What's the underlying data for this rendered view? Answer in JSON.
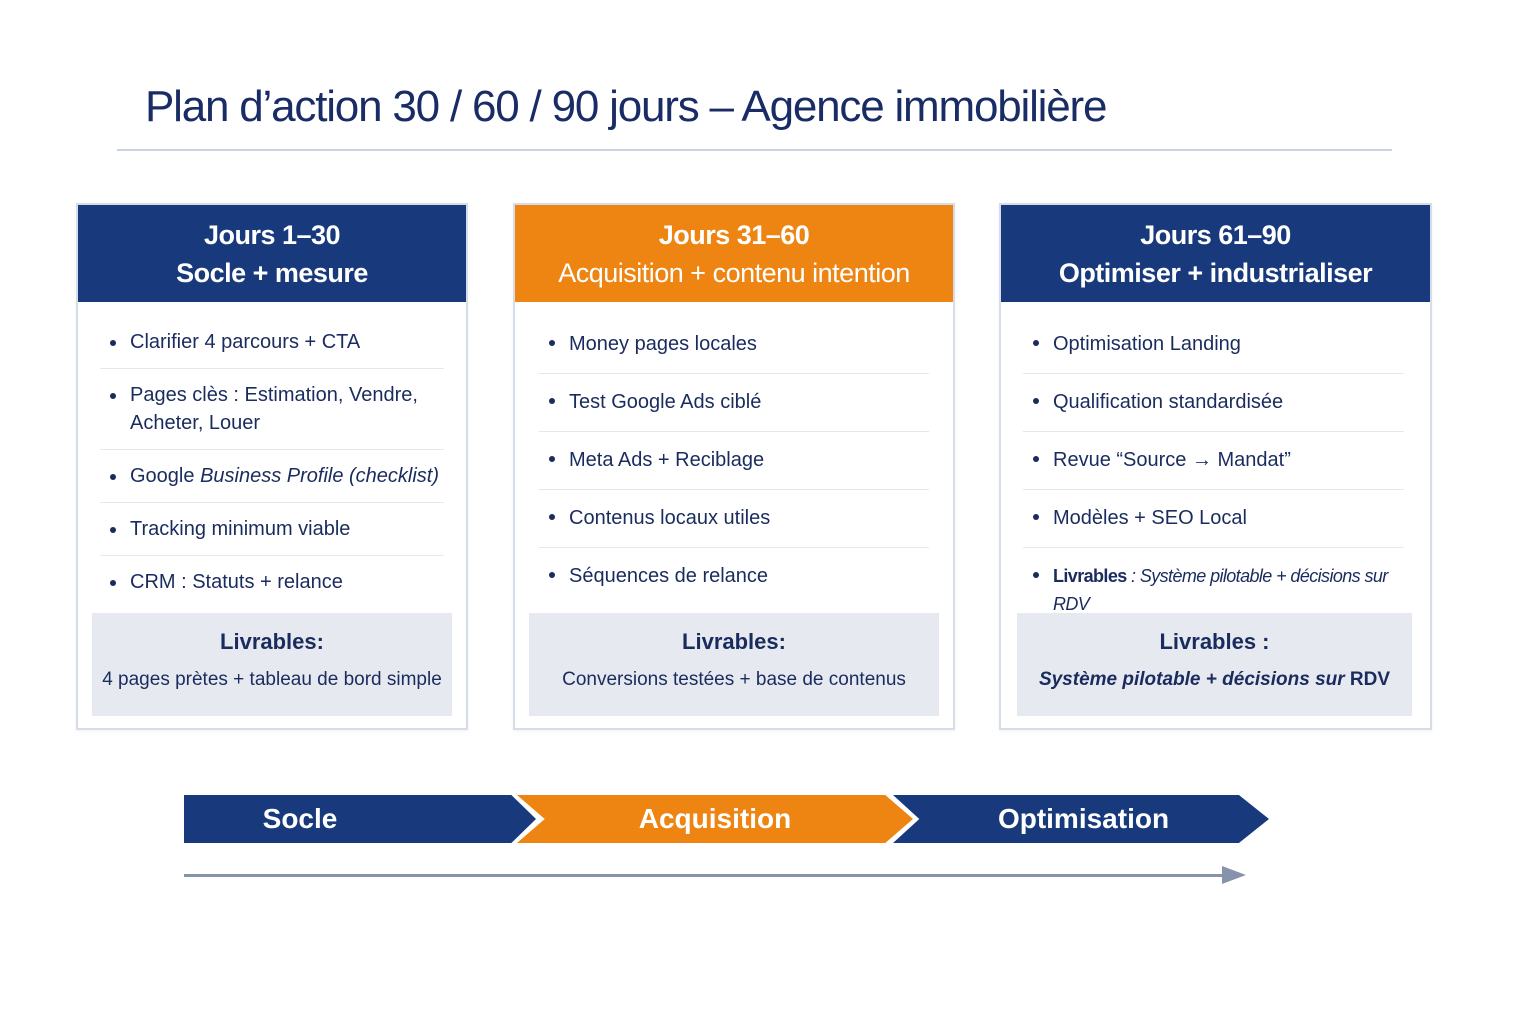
{
  "title": "Plan d’action 30 / 60 /  90 jours – Agence immobilière",
  "colors": {
    "navy": "#183a7c",
    "orange": "#ee8412",
    "deliverable_bg": "#e6e9f0"
  },
  "phases": [
    {
      "days": "Jours 1–30",
      "name": "Socle + mesure",
      "items": [
        {
          "text": "Clarifier 4 parcours + CTA"
        },
        {
          "text": "Pages clès : Estimation, Vendre, Acheter, Louer"
        },
        {
          "text": "Google ",
          "italic": "Business Profile (checklist)"
        },
        {
          "text": "Tracking minimum viable"
        },
        {
          "text": "CRM : Statuts + relance"
        }
      ],
      "deliverables_label": "Livrables:",
      "deliverables": "4 pages prètes + tableau de bord simple"
    },
    {
      "days": "Jours 31–60",
      "name": "Acquisition + contenu intention",
      "items": [
        {
          "text": "Money pages locales"
        },
        {
          "text": "Test Google Ads ciblé"
        },
        {
          "text": "Meta Ads + Reciblage"
        },
        {
          "text": "Contenus locaux utiles"
        },
        {
          "text": "Séquences de relance"
        }
      ],
      "deliverables_label": "Livrables:",
      "deliverables": "Conversions testées + base de contenus"
    },
    {
      "days": "Jours 61–90",
      "name": "Optimiser + industrialiser",
      "items": [
        {
          "text": "Optimisation Landing"
        },
        {
          "text": "Qualification standardisée"
        },
        {
          "text": "Revue “Source → Mandat”"
        },
        {
          "text": "Modèles + SEO Local"
        },
        {
          "bold": "Livrables",
          "italic": " : Système pilotable + décisions sur RDV"
        }
      ],
      "deliverables_label": "Livrables :",
      "deliverables": "Système pilotable + décisions sur ",
      "deliverables_bold": "RDV"
    }
  ],
  "timeline": [
    "Socle",
    "Acquisition",
    "Optimisation"
  ]
}
